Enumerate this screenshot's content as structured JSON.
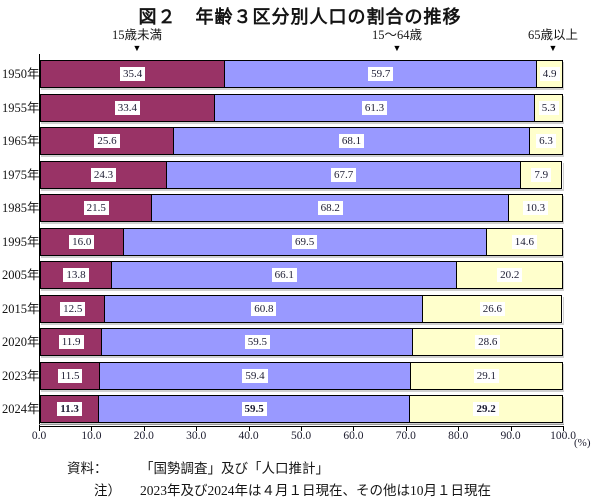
{
  "chart_data": {
    "type": "bar",
    "stacked": true,
    "orientation": "horizontal",
    "title": "図２　年齢３区分別人口の割合の推移",
    "categories": [
      "1950年",
      "1955年",
      "1965年",
      "1975年",
      "1985年",
      "1995年",
      "2005年",
      "2015年",
      "2020年",
      "2023年",
      "2024年"
    ],
    "series": [
      {
        "key": "under15",
        "name": "15歳未満",
        "color": "#993366",
        "values": [
          35.4,
          33.4,
          25.6,
          24.3,
          21.5,
          16.0,
          13.8,
          12.5,
          11.9,
          11.5,
          11.3
        ]
      },
      {
        "key": "15to64",
        "name": "15～64歳",
        "color": "#9999FF",
        "values": [
          59.7,
          61.3,
          68.1,
          67.7,
          68.2,
          69.5,
          66.1,
          60.8,
          59.5,
          59.4,
          59.5
        ]
      },
      {
        "key": "65plus",
        "name": "65歳以上",
        "color": "#FFFFCC",
        "values": [
          4.9,
          5.3,
          6.3,
          7.9,
          10.3,
          14.6,
          20.2,
          26.6,
          28.6,
          29.1,
          29.2
        ]
      }
    ],
    "xlim": [
      0,
      100
    ],
    "xticks": [
      "0.0",
      "10.0",
      "20.0",
      "30.0",
      "40.0",
      "50.0",
      "60.0",
      "70.0",
      "80.0",
      "90.0",
      "100.0"
    ],
    "unit_label": "(%)",
    "value_labels": true,
    "emphasize_last_category": true,
    "legend_position": "top-arrows",
    "grid": false
  },
  "footer": {
    "source_label": "資料：",
    "source_text": "「国勢調査」及び「人口推計」",
    "note_label": "注）",
    "note_text": "2023年及び2024年は４月１日現在、その他は10月１日現在"
  }
}
